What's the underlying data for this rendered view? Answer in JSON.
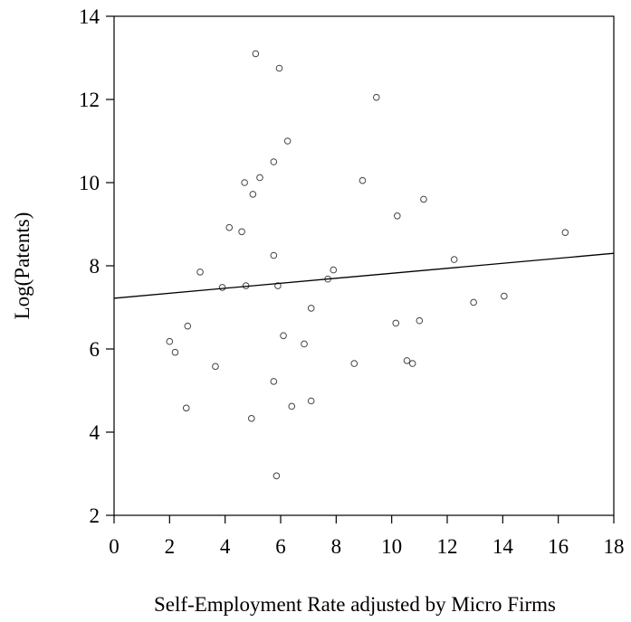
{
  "chart_data": {
    "type": "scatter",
    "title": "",
    "xlabel": "Self-Employment Rate adjusted by Micro Firms",
    "ylabel": "Log(Patents)",
    "xlim": [
      0,
      18
    ],
    "ylim": [
      2,
      14
    ],
    "xticks": [
      0,
      2,
      4,
      6,
      8,
      10,
      12,
      14,
      16,
      18
    ],
    "yticks": [
      2,
      4,
      6,
      8,
      10,
      12,
      14
    ],
    "xtick_labels": [
      "0",
      "2",
      "4",
      "6",
      "8",
      "10",
      "12",
      "14",
      "16",
      "18"
    ],
    "ytick_labels": [
      "2",
      "4",
      "6",
      "8",
      "10",
      "12",
      "14"
    ],
    "grid": false,
    "series": [
      {
        "x": [
          5.1,
          5.95,
          9.45,
          6.25,
          5.75,
          5.25,
          4.7,
          5.0,
          8.95,
          10.2,
          11.15,
          4.15,
          4.6,
          5.75,
          3.1,
          3.9,
          4.75,
          5.9,
          7.9,
          7.7,
          16.25,
          12.25,
          14.05,
          12.95,
          7.1,
          10.15,
          11.0,
          2.0,
          2.65,
          2.2,
          6.1,
          6.85,
          3.65,
          5.75,
          8.65,
          10.55,
          10.75,
          7.1,
          6.4,
          2.6,
          4.95,
          5.85
        ],
        "y": [
          13.1,
          12.75,
          12.05,
          11.0,
          10.5,
          10.12,
          10.0,
          9.72,
          10.05,
          9.2,
          9.6,
          8.92,
          8.82,
          8.25,
          7.85,
          7.48,
          7.52,
          7.52,
          7.9,
          7.68,
          8.8,
          8.15,
          7.27,
          7.12,
          6.98,
          6.62,
          6.68,
          6.18,
          6.55,
          5.92,
          6.32,
          6.12,
          5.58,
          5.22,
          5.65,
          5.72,
          5.65,
          4.75,
          4.62,
          4.58,
          4.33,
          2.95
        ]
      }
    ],
    "fit_line": {
      "x": [
        0,
        18
      ],
      "y": [
        7.22,
        8.3
      ]
    }
  }
}
